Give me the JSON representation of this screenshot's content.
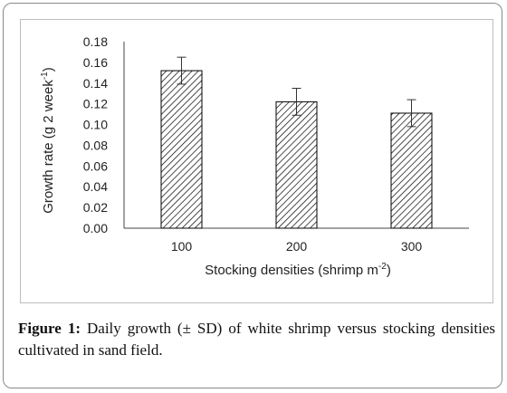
{
  "caption": {
    "label": "Figure 1:",
    "text": " Daily growth (± SD) of white shrimp versus stocking densities cultivated in sand field."
  },
  "chart_data": {
    "type": "bar",
    "categories": [
      "100",
      "200",
      "300"
    ],
    "values": [
      0.152,
      0.122,
      0.111
    ],
    "errors": [
      0.013,
      0.013,
      0.013
    ],
    "ylim": [
      0,
      0.18
    ],
    "yticks": [
      "0.00",
      "0.02",
      "0.04",
      "0.06",
      "0.08",
      "0.10",
      "0.12",
      "0.14",
      "0.16",
      "0.18"
    ],
    "xlabel": "Stocking densities (shrimp m",
    "xlabel_sup": "-2",
    "xlabel_end": ")",
    "ylabel": "Growth rate (g 2 week",
    "ylabel_sup": "-1",
    "ylabel_end": ")",
    "fill": "hatched",
    "bar_edge_color": "#000000",
    "grid": false
  }
}
